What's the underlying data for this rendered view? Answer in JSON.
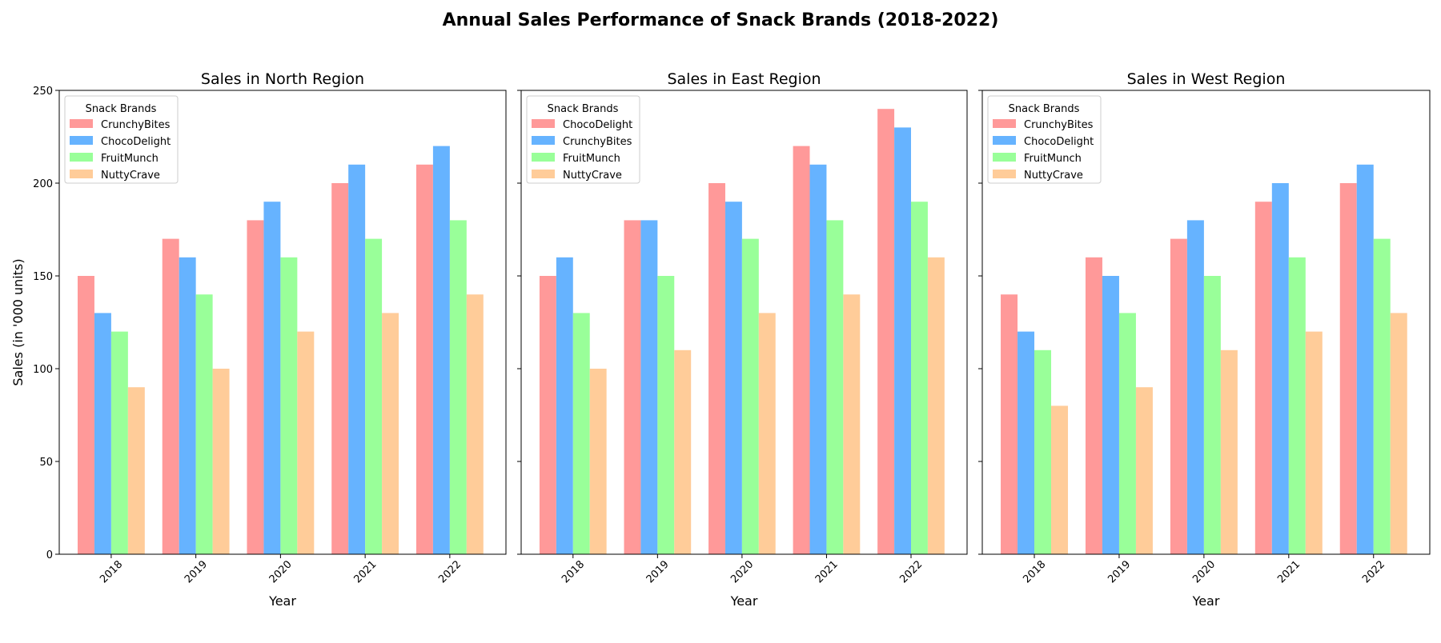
{
  "figure": {
    "title": "Annual Sales Performance of Snack Brands (2018-2022)"
  },
  "chart_data": [
    {
      "type": "bar",
      "title": "Sales in North Region",
      "xlabel": "Year",
      "ylabel": "Sales (in '000 units)",
      "ylim": [
        0,
        250
      ],
      "yticks": [
        0,
        50,
        100,
        150,
        200,
        250
      ],
      "categories": [
        "2018",
        "2019",
        "2020",
        "2021",
        "2022"
      ],
      "legend_title": "Snack Brands",
      "legend_position": "top-left",
      "series": [
        {
          "name": "CrunchyBites",
          "color": "#ff9999",
          "values": [
            150,
            170,
            180,
            200,
            210
          ]
        },
        {
          "name": "ChocoDelight",
          "color": "#66b3ff",
          "values": [
            130,
            160,
            190,
            210,
            220
          ]
        },
        {
          "name": "FruitMunch",
          "color": "#99ff99",
          "values": [
            120,
            140,
            160,
            170,
            180
          ]
        },
        {
          "name": "NuttyCrave",
          "color": "#ffcc99",
          "values": [
            90,
            100,
            120,
            130,
            140
          ]
        }
      ]
    },
    {
      "type": "bar",
      "title": "Sales in East Region",
      "xlabel": "Year",
      "ylabel": "",
      "ylim": [
        0,
        250
      ],
      "yticks": [
        0,
        50,
        100,
        150,
        200,
        250
      ],
      "categories": [
        "2018",
        "2019",
        "2020",
        "2021",
        "2022"
      ],
      "legend_title": "Snack Brands",
      "legend_position": "top-left",
      "series": [
        {
          "name": "ChocoDelight",
          "color": "#ff9999",
          "values": [
            150,
            180,
            200,
            220,
            240
          ]
        },
        {
          "name": "CrunchyBites",
          "color": "#66b3ff",
          "values": [
            160,
            180,
            190,
            210,
            230
          ]
        },
        {
          "name": "FruitMunch",
          "color": "#99ff99",
          "values": [
            130,
            150,
            170,
            180,
            190
          ]
        },
        {
          "name": "NuttyCrave",
          "color": "#ffcc99",
          "values": [
            100,
            110,
            130,
            140,
            160
          ]
        }
      ]
    },
    {
      "type": "bar",
      "title": "Sales in West Region",
      "xlabel": "Year",
      "ylabel": "",
      "ylim": [
        0,
        250
      ],
      "yticks": [
        0,
        50,
        100,
        150,
        200,
        250
      ],
      "categories": [
        "2018",
        "2019",
        "2020",
        "2021",
        "2022"
      ],
      "legend_title": "Snack Brands",
      "legend_position": "top-left",
      "series": [
        {
          "name": "CrunchyBites",
          "color": "#ff9999",
          "values": [
            140,
            160,
            170,
            190,
            200
          ]
        },
        {
          "name": "ChocoDelight",
          "color": "#66b3ff",
          "values": [
            120,
            150,
            180,
            200,
            210
          ]
        },
        {
          "name": "FruitMunch",
          "color": "#99ff99",
          "values": [
            110,
            130,
            150,
            160,
            170
          ]
        },
        {
          "name": "NuttyCrave",
          "color": "#ffcc99",
          "values": [
            80,
            90,
            110,
            120,
            130
          ]
        }
      ]
    }
  ]
}
